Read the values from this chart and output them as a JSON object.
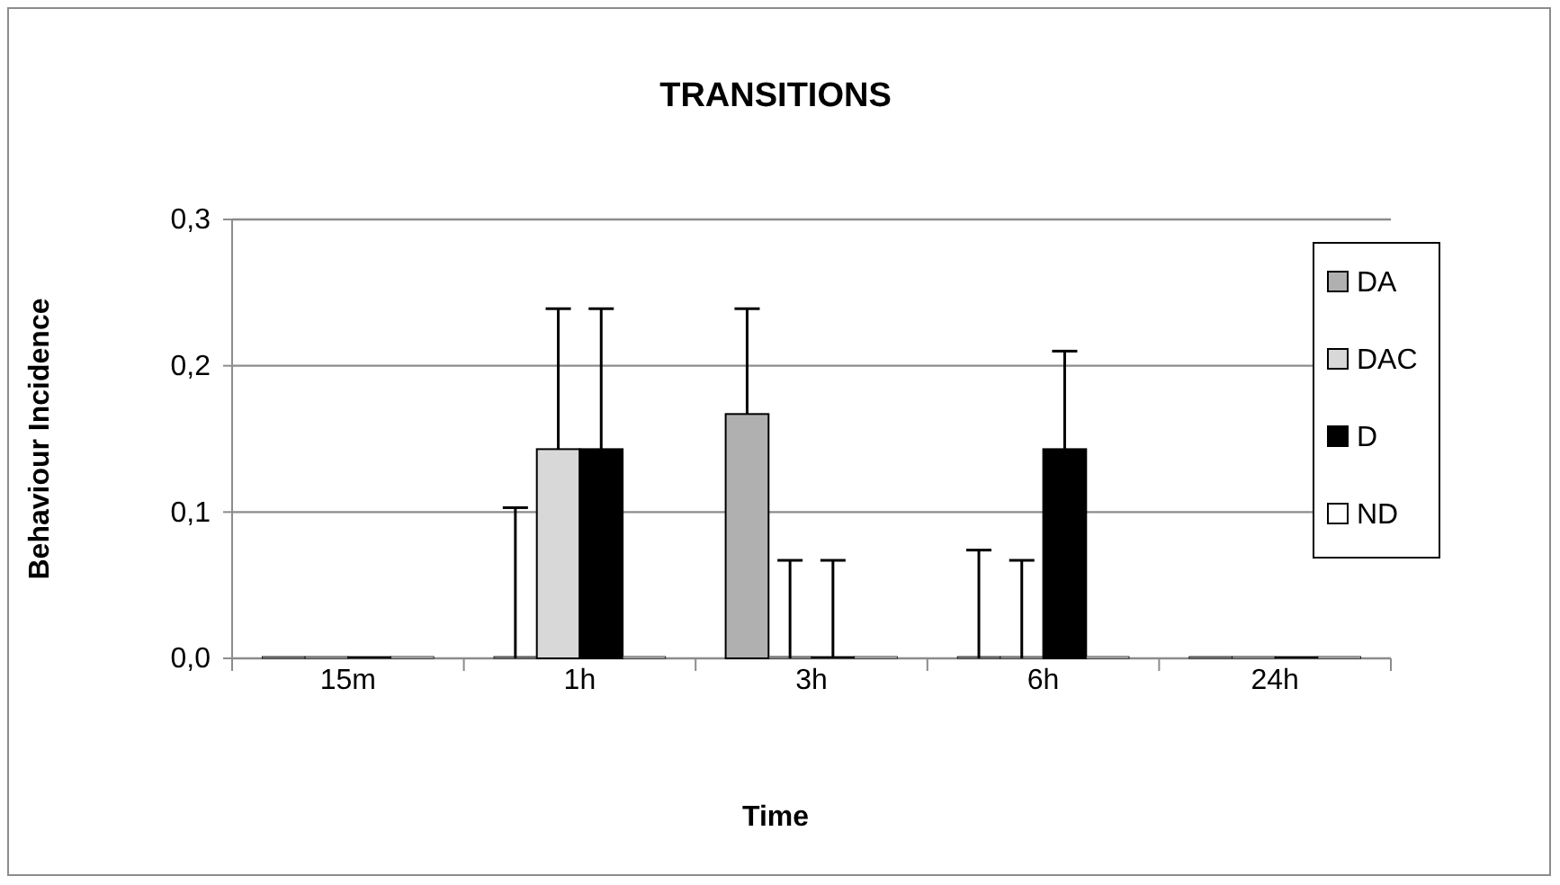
{
  "chart_data": {
    "type": "bar",
    "title": "TRANSITIONS",
    "xlabel": "Time",
    "ylabel": "Behaviour Incidence",
    "categories": [
      "15m",
      "1h",
      "3h",
      "6h",
      "24h"
    ],
    "series": [
      {
        "name": "DA",
        "color": "#b0b0b0",
        "values": [
          0,
          0,
          0.167,
          0,
          0
        ],
        "errors": [
          null,
          [
            0,
            0.103
          ],
          [
            0.167,
            0.239
          ],
          [
            0,
            0.074
          ],
          null
        ]
      },
      {
        "name": "DAC",
        "color": "#d8d8d8",
        "values": [
          0,
          0.143,
          0,
          0,
          0
        ],
        "errors": [
          null,
          [
            0.143,
            0.239
          ],
          [
            0,
            0.067
          ],
          [
            0,
            0.067
          ],
          null
        ]
      },
      {
        "name": "D",
        "color": "#000000",
        "values": [
          0,
          0.143,
          0,
          0.143,
          0
        ],
        "errors": [
          null,
          [
            0.143,
            0.239
          ],
          [
            0,
            0.067
          ],
          [
            0.143,
            0.21
          ],
          null
        ]
      },
      {
        "name": "ND",
        "color": "#ffffff",
        "values": [
          0,
          0,
          0,
          0,
          0
        ]
      }
    ],
    "ylim": [
      0,
      0.3
    ],
    "yticks": [
      {
        "value": 0,
        "label": "0,0"
      },
      {
        "value": 0.1,
        "label": "0,1"
      },
      {
        "value": 0.2,
        "label": "0,2"
      },
      {
        "value": 0.3,
        "label": "0,3"
      }
    ],
    "grid": "y",
    "legend": "right"
  }
}
